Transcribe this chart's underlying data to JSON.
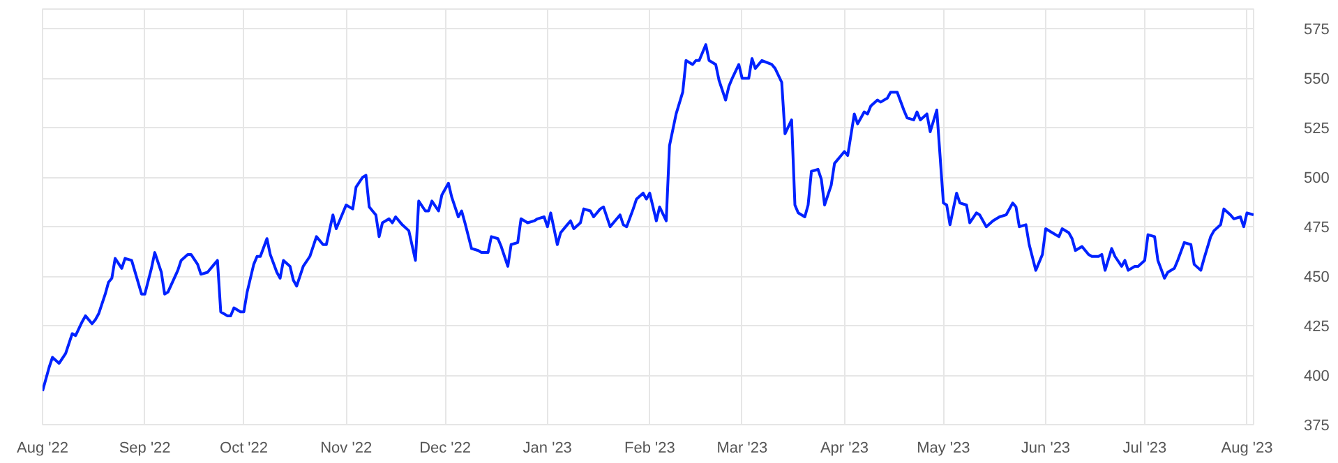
{
  "chart_data": {
    "type": "line",
    "xlim": [
      "2022-08-01",
      "2023-08-03"
    ],
    "ylim": [
      375,
      585
    ],
    "xticks": [
      {
        "value": "2022-08-01",
        "label": "Aug '22"
      },
      {
        "value": "2022-09-01",
        "label": "Sep '22"
      },
      {
        "value": "2022-10-01",
        "label": "Oct '22"
      },
      {
        "value": "2022-11-01",
        "label": "Nov '22"
      },
      {
        "value": "2022-12-01",
        "label": "Dec '22"
      },
      {
        "value": "2023-01-01",
        "label": "Jan '23"
      },
      {
        "value": "2023-02-01",
        "label": "Feb '23"
      },
      {
        "value": "2023-03-01",
        "label": "Mar '23"
      },
      {
        "value": "2023-04-01",
        "label": "Apr '23"
      },
      {
        "value": "2023-05-01",
        "label": "May '23"
      },
      {
        "value": "2023-06-01",
        "label": "Jun '23"
      },
      {
        "value": "2023-07-01",
        "label": "Jul '23"
      },
      {
        "value": "2023-08-01",
        "label": "Aug '23"
      }
    ],
    "yticks": [
      375,
      400,
      425,
      450,
      475,
      500,
      525,
      550,
      575
    ],
    "grid": true,
    "marker": "none",
    "line_style": "solid",
    "x": [
      "2022-08-01",
      "2022-08-03",
      "2022-08-04",
      "2022-08-06",
      "2022-08-08",
      "2022-08-10",
      "2022-08-11",
      "2022-08-13",
      "2022-08-14",
      "2022-08-16",
      "2022-08-17",
      "2022-08-18",
      "2022-08-20",
      "2022-08-21",
      "2022-08-22",
      "2022-08-23",
      "2022-08-25",
      "2022-08-26",
      "2022-08-28",
      "2022-08-31",
      "2022-09-01",
      "2022-09-03",
      "2022-09-04",
      "2022-09-06",
      "2022-09-07",
      "2022-09-08",
      "2022-09-11",
      "2022-09-12",
      "2022-09-14",
      "2022-09-15",
      "2022-09-17",
      "2022-09-18",
      "2022-09-20",
      "2022-09-22",
      "2022-09-23",
      "2022-09-24",
      "2022-09-26",
      "2022-09-27",
      "2022-09-28",
      "2022-09-30",
      "2022-10-01",
      "2022-10-02",
      "2022-10-04",
      "2022-10-05",
      "2022-10-06",
      "2022-10-08",
      "2022-10-09",
      "2022-10-11",
      "2022-10-12",
      "2022-10-13",
      "2022-10-15",
      "2022-10-16",
      "2022-10-17",
      "2022-10-19",
      "2022-10-21",
      "2022-10-22",
      "2022-10-23",
      "2022-10-25",
      "2022-10-26",
      "2022-10-28",
      "2022-10-29",
      "2022-11-01",
      "2022-11-03",
      "2022-11-04",
      "2022-11-06",
      "2022-11-07",
      "2022-11-08",
      "2022-11-10",
      "2022-11-11",
      "2022-11-12",
      "2022-11-14",
      "2022-11-15",
      "2022-11-16",
      "2022-11-18",
      "2022-11-20",
      "2022-11-22",
      "2022-11-23",
      "2022-11-25",
      "2022-11-26",
      "2022-11-27",
      "2022-11-29",
      "2022-11-30",
      "2022-12-02",
      "2022-12-03",
      "2022-12-05",
      "2022-12-06",
      "2022-12-07",
      "2022-12-09",
      "2022-12-11",
      "2022-12-12",
      "2022-12-14",
      "2022-12-15",
      "2022-12-17",
      "2022-12-18",
      "2022-12-20",
      "2022-12-21",
      "2022-12-23",
      "2022-12-24",
      "2022-12-26",
      "2022-12-28",
      "2022-12-29",
      "2022-12-31",
      "2023-01-01",
      "2023-01-02",
      "2023-01-04",
      "2023-01-05",
      "2023-01-07",
      "2023-01-08",
      "2023-01-09",
      "2023-01-11",
      "2023-01-12",
      "2023-01-14",
      "2023-01-15",
      "2023-01-17",
      "2023-01-18",
      "2023-01-20",
      "2023-01-21",
      "2023-01-23",
      "2023-01-24",
      "2023-01-25",
      "2023-01-27",
      "2023-01-28",
      "2023-01-30",
      "2023-01-31",
      "2023-02-01",
      "2023-02-03",
      "2023-02-04",
      "2023-02-06",
      "2023-02-07",
      "2023-02-09",
      "2023-02-11",
      "2023-02-12",
      "2023-02-14",
      "2023-02-15",
      "2023-02-16",
      "2023-02-18",
      "2023-02-19",
      "2023-02-21",
      "2023-02-22",
      "2023-02-24",
      "2023-02-25",
      "2023-02-26",
      "2023-02-28",
      "2023-03-01",
      "2023-03-03",
      "2023-03-04",
      "2023-03-05",
      "2023-03-07",
      "2023-03-10",
      "2023-03-11",
      "2023-03-13",
      "2023-03-14",
      "2023-03-16",
      "2023-03-17",
      "2023-03-18",
      "2023-03-20",
      "2023-03-21",
      "2023-03-22",
      "2023-03-24",
      "2023-03-25",
      "2023-03-26",
      "2023-03-28",
      "2023-03-29",
      "2023-03-31",
      "2023-04-01",
      "2023-04-02",
      "2023-04-04",
      "2023-04-05",
      "2023-04-07",
      "2023-04-08",
      "2023-04-09",
      "2023-04-11",
      "2023-04-12",
      "2023-04-14",
      "2023-04-15",
      "2023-04-17",
      "2023-04-19",
      "2023-04-20",
      "2023-04-22",
      "2023-04-23",
      "2023-04-24",
      "2023-04-26",
      "2023-04-27",
      "2023-04-29",
      "2023-05-01",
      "2023-05-02",
      "2023-05-03",
      "2023-05-05",
      "2023-05-06",
      "2023-05-08",
      "2023-05-09",
      "2023-05-11",
      "2023-05-12",
      "2023-05-14",
      "2023-05-16",
      "2023-05-18",
      "2023-05-20",
      "2023-05-22",
      "2023-05-23",
      "2023-05-24",
      "2023-05-26",
      "2023-05-27",
      "2023-05-29",
      "2023-05-31",
      "2023-06-01",
      "2023-06-03",
      "2023-06-05",
      "2023-06-06",
      "2023-06-08",
      "2023-06-09",
      "2023-06-10",
      "2023-06-12",
      "2023-06-14",
      "2023-06-15",
      "2023-06-17",
      "2023-06-18",
      "2023-06-19",
      "2023-06-21",
      "2023-06-22",
      "2023-06-24",
      "2023-06-25",
      "2023-06-26",
      "2023-06-28",
      "2023-06-29",
      "2023-07-01",
      "2023-07-02",
      "2023-07-04",
      "2023-07-05",
      "2023-07-07",
      "2023-07-08",
      "2023-07-10",
      "2023-07-11",
      "2023-07-13",
      "2023-07-15",
      "2023-07-16",
      "2023-07-18",
      "2023-07-19",
      "2023-07-21",
      "2023-07-22",
      "2023-07-24",
      "2023-07-25",
      "2023-07-27",
      "2023-07-28",
      "2023-07-30",
      "2023-07-31",
      "2023-08-01",
      "2023-08-03"
    ],
    "series": [
      {
        "color": "#0022ff",
        "values": [
          392,
          404,
          409,
          406,
          411,
          421,
          420,
          427,
          430,
          426,
          428,
          431,
          441,
          447,
          449,
          459,
          454,
          459,
          458,
          441,
          441,
          454,
          462,
          452,
          441,
          442,
          453,
          458,
          461,
          461,
          456,
          451,
          452,
          456,
          458,
          432,
          430,
          430,
          434,
          432,
          432,
          442,
          456,
          460,
          460,
          469,
          461,
          452,
          449,
          458,
          455,
          448,
          445,
          455,
          460,
          465,
          470,
          466,
          466,
          481,
          474,
          486,
          484,
          495,
          500,
          501,
          485,
          481,
          470,
          477,
          479,
          477,
          480,
          476,
          473,
          458,
          488,
          483,
          483,
          488,
          483,
          491,
          497,
          490,
          480,
          483,
          477,
          464,
          463,
          462,
          462,
          470,
          469,
          465,
          455,
          466,
          467,
          479,
          477,
          478,
          479,
          480,
          475,
          482,
          466,
          472,
          476,
          478,
          474,
          477,
          484,
          483,
          480,
          484,
          485,
          475,
          477,
          481,
          476,
          475,
          484,
          489,
          492,
          489,
          492,
          478,
          485,
          478,
          516,
          532,
          543,
          559,
          557,
          559,
          559,
          567,
          559,
          557,
          549,
          539,
          546,
          550,
          557,
          550,
          550,
          560,
          555,
          559,
          557,
          555,
          548,
          522,
          529,
          486,
          482,
          480,
          486,
          503,
          504,
          499,
          486,
          496,
          507,
          511,
          513,
          511,
          532,
          527,
          533,
          532,
          536,
          539,
          538,
          540,
          543,
          543,
          534,
          530,
          529,
          533,
          529,
          532,
          523,
          534,
          487,
          486,
          476,
          492,
          487,
          486,
          477,
          482,
          481,
          475,
          478,
          480,
          481,
          487,
          485,
          475,
          476,
          466,
          453,
          461,
          474,
          472,
          470,
          474,
          472,
          469,
          463,
          465,
          461,
          460,
          460,
          461,
          453,
          464,
          460,
          455,
          458,
          453,
          455,
          455,
          458,
          471,
          470,
          458,
          449,
          452,
          454,
          458,
          467,
          466,
          456,
          453,
          459,
          470,
          473,
          476,
          484,
          481,
          479,
          480,
          475,
          482,
          481
        ]
      }
    ]
  }
}
